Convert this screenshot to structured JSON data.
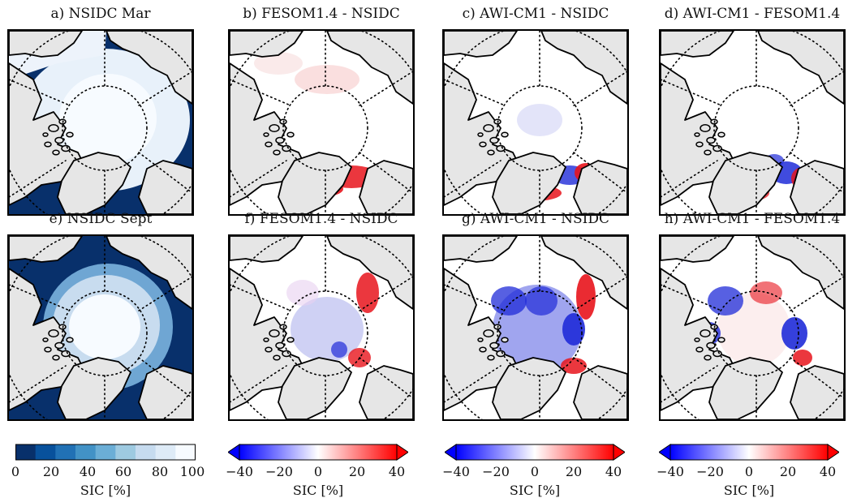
{
  "panels": [
    {
      "id": "a",
      "title": "a) NSIDC Mar",
      "kind": "abs-mar"
    },
    {
      "id": "b",
      "title": "b) FESOM1.4 - NSIDC",
      "kind": "diff-mar-b"
    },
    {
      "id": "c",
      "title": "c) AWI-CM1 - NSIDC",
      "kind": "diff-mar-c"
    },
    {
      "id": "d",
      "title": "d) AWI-CM1 - FESOM1.4",
      "kind": "diff-mar-d"
    },
    {
      "id": "e",
      "title": "e) NSIDC Sept",
      "kind": "abs-sep"
    },
    {
      "id": "f",
      "title": "f) FESOM1.4 - NSIDC",
      "kind": "diff-sep-f"
    },
    {
      "id": "g",
      "title": "g) AWI-CM1 - NSIDC",
      "kind": "diff-sep-g"
    },
    {
      "id": "h",
      "title": "h) AWI-CM1 - FESOM1.4",
      "kind": "diff-sep-h"
    }
  ],
  "colorbars": [
    {
      "id": "abs",
      "ticks": [
        "0",
        "20",
        "40",
        "60",
        "80",
        "100"
      ],
      "label": "SIC [%]",
      "colors": [
        "#08306b",
        "#08519c",
        "#2171b5",
        "#4292c6",
        "#6baed6",
        "#9ecae1",
        "#c6dbef",
        "#deebf7",
        "#f7fbff"
      ]
    },
    {
      "id": "diff1",
      "ticks": [
        "−40",
        "−20",
        "0",
        "20",
        "40"
      ],
      "label": "SIC [%]",
      "colors": [
        "#0000ff",
        "#ffffff",
        "#ff0000"
      ]
    },
    {
      "id": "diff2",
      "ticks": [
        "−40",
        "−20",
        "0",
        "20",
        "40"
      ],
      "label": "SIC [%]",
      "colors": [
        "#0000ff",
        "#ffffff",
        "#ff0000"
      ]
    },
    {
      "id": "diff3",
      "ticks": [
        "−40",
        "−20",
        "0",
        "20",
        "40"
      ],
      "label": "SIC [%]",
      "colors": [
        "#0000ff",
        "#ffffff",
        "#ff0000"
      ]
    }
  ],
  "colors": {
    "land": "#e6e6e6",
    "ocean_open": "#08306b",
    "ice": "#f7fbff",
    "pos": "#e8141c",
    "neg": "#1f2bd8"
  }
}
